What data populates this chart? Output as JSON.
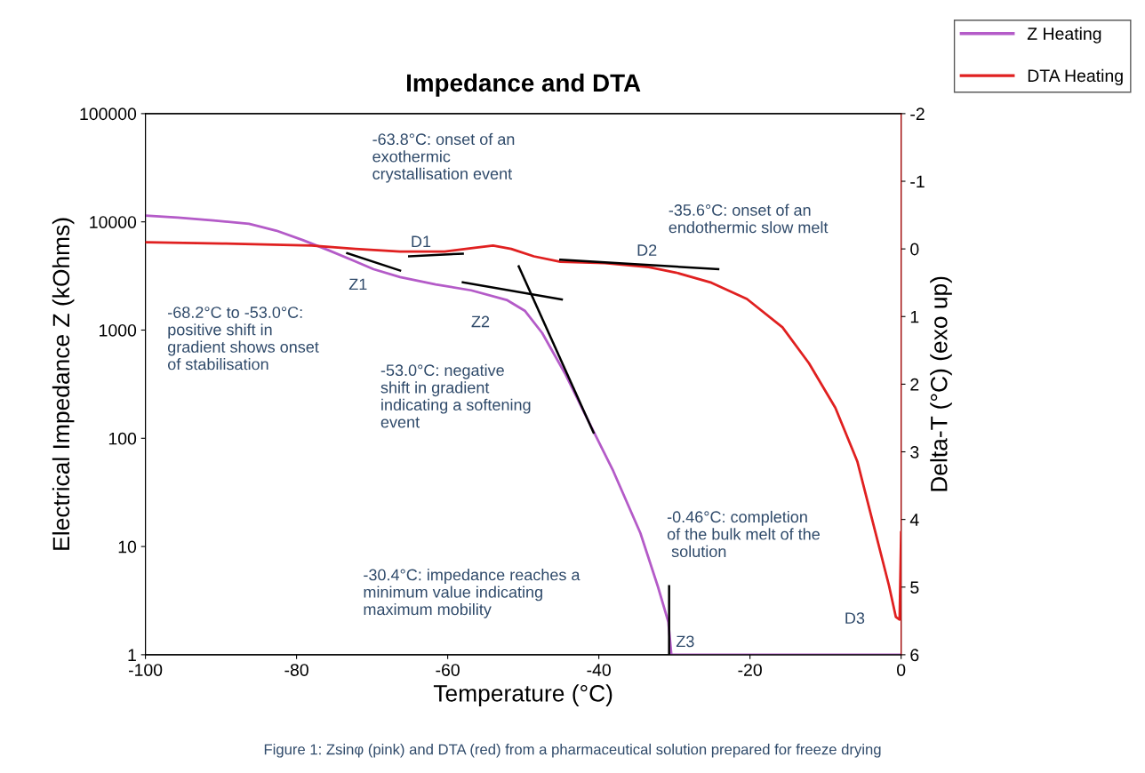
{
  "chart_data": {
    "type": "line",
    "title": "Impedance and DTA",
    "xlabel": "Temperature (°C)",
    "ylabel": "Electrical Impedance Z (kOhms)",
    "y2label": "Delta-T (°C) (exo up)",
    "xlim": [
      -100,
      0
    ],
    "xticks": [
      -100,
      -80,
      -60,
      -40,
      -20,
      0
    ],
    "log": "y",
    "ylim": [
      1,
      100000
    ],
    "yticks": [
      {
        "value": 1,
        "label": "1"
      },
      {
        "value": 10,
        "label": "10"
      },
      {
        "value": 100,
        "label": "100"
      },
      {
        "value": 1000,
        "label": "1000"
      },
      {
        "value": 10000,
        "label": "10000"
      },
      {
        "value": 100000,
        "label": "100000"
      }
    ],
    "y2lim": [
      6,
      -2
    ],
    "y2ticks": [
      -2,
      -1,
      0,
      1,
      2,
      3,
      4,
      5,
      6
    ],
    "grid": false,
    "legend": "top right",
    "marker": "none",
    "line_style": "solid",
    "series": [
      {
        "name": "Z Heating",
        "color": "#b45bc8",
        "x": [
          -100,
          -95.7,
          -91,
          -86.3,
          -82.7,
          -79.2,
          -75.7,
          -72.7,
          -69.8,
          -66.3,
          -61.6,
          -56.9,
          -52.2,
          -49.8,
          -47.5,
          -44.5,
          -41.6,
          -38.1,
          -34.5,
          -32.2,
          -30.8,
          -30.4,
          -25.1,
          0
        ],
        "values": [
          11400,
          10960,
          10300,
          9600,
          8300,
          6800,
          5440,
          4450,
          3650,
          3090,
          2640,
          2330,
          1900,
          1510,
          940,
          400,
          155,
          50,
          13.3,
          4.3,
          2.0,
          1,
          1,
          1
        ]
      },
      {
        "name": "DTA Heating",
        "color": "#e02020",
        "axis": "y2",
        "x": [
          -100,
          -89.8,
          -78.0,
          -72.2,
          -66.3,
          -60.4,
          -56.9,
          -54.0,
          -51.6,
          -48.6,
          -45.1,
          -39.2,
          -33.4,
          -29.8,
          -25.1,
          -20.4,
          -15.7,
          -12.2,
          -8.7,
          -5.8,
          -3.4,
          -1.6,
          -0.7,
          -0.2,
          0
        ],
        "values": [
          -0.1,
          -0.08,
          -0.05,
          0.0,
          0.04,
          0.04,
          -0.01,
          -0.05,
          0.0,
          0.11,
          0.19,
          0.21,
          0.27,
          0.35,
          0.5,
          0.74,
          1.16,
          1.69,
          2.35,
          3.14,
          4.19,
          4.98,
          5.44,
          5.48,
          4.19
        ]
      },
      {
        "color": "#000000",
        "x": [
          -73.3,
          -66.3
        ],
        "values": [
          5130,
          3550
        ]
      },
      {
        "color": "#000000",
        "axis": "y2",
        "x": [
          -65.1,
          -58.0
        ],
        "values": [
          0.11,
          0.07
        ]
      },
      {
        "color": "#000000",
        "x": [
          -58.0,
          -44.9
        ],
        "values": [
          2760,
          1920
        ]
      },
      {
        "color": "#000000",
        "x": [
          -50.6,
          -40.7
        ],
        "values": [
          3880,
          113
        ]
      },
      {
        "color": "#000000",
        "axis": "y2",
        "x": [
          -45.1,
          -24.2
        ],
        "values": [
          0.16,
          0.3
        ]
      },
      {
        "color": "#000000",
        "x": [
          -30.7,
          -30.7
        ],
        "values": [
          4.3,
          1
        ]
      }
    ],
    "annotations": [
      "-63.8°C: onset of an\nexothermic\ncrystallisation event",
      "-35.6°C: onset of an\nendothermic slow melt",
      "-68.2°C to -53.0°C:\npositive shift in\ngradient shows onset\nof stabilisation",
      "-53.0°C: negative\nshift in gradient\nindicating a softening\nevent",
      "-0.46°C: completion\nof the bulk melt of the\n solution",
      "-30.4°C: impedance reaches a\nminimum value indicating\nmaximum mobility",
      "D1",
      "Z1",
      "Z2",
      "D2",
      "Z3",
      "D3",
      "Figure 1: Zsinφ (pink) and DTA (red) from a pharmaceutical solution prepared for freeze drying"
    ]
  }
}
